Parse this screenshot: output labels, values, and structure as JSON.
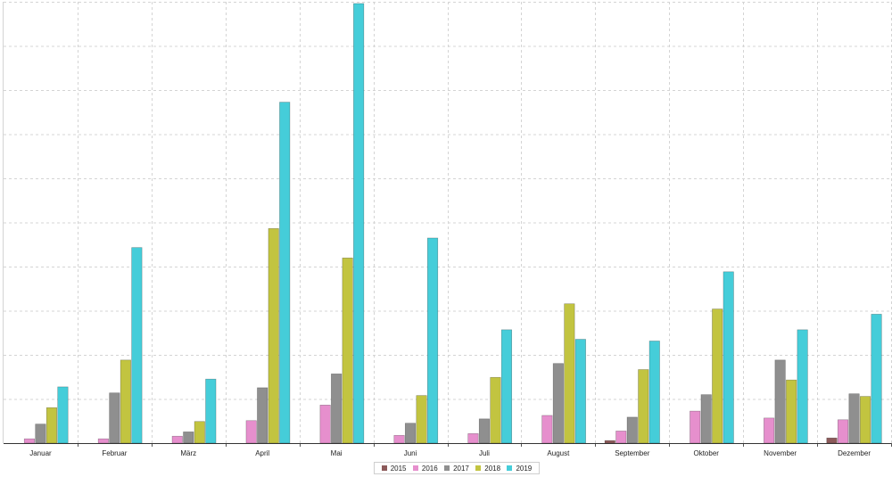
{
  "chart_data": {
    "type": "bar",
    "categories": [
      "Januar",
      "Februar",
      "März",
      "April",
      "Mai",
      "Juni",
      "Juli",
      "August",
      "September",
      "Oktober",
      "November",
      "Dezember"
    ],
    "series": [
      {
        "name": "2015",
        "color": "#8c5a5a",
        "values": [
          0,
          0,
          0,
          0,
          0,
          0,
          0,
          0,
          3,
          0,
          0,
          6
        ]
      },
      {
        "name": "2016",
        "color": "#e68fcd",
        "values": [
          5,
          5,
          8,
          26,
          44,
          9,
          11,
          32,
          14,
          37,
          29,
          27
        ]
      },
      {
        "name": "2017",
        "color": "#8f8f8f",
        "values": [
          22,
          58,
          13,
          64,
          80,
          23,
          28,
          92,
          30,
          56,
          96,
          57
        ]
      },
      {
        "name": "2018",
        "color": "#c2c440",
        "values": [
          41,
          96,
          25,
          248,
          214,
          55,
          76,
          161,
          85,
          155,
          73,
          54
        ]
      },
      {
        "name": "2019",
        "color": "#45cdd9",
        "values": [
          65,
          226,
          74,
          394,
          508,
          237,
          131,
          120,
          118,
          198,
          131,
          149
        ]
      }
    ],
    "ylim": [
      0,
      510
    ],
    "grid": true,
    "legend_position": "bottom-center"
  }
}
